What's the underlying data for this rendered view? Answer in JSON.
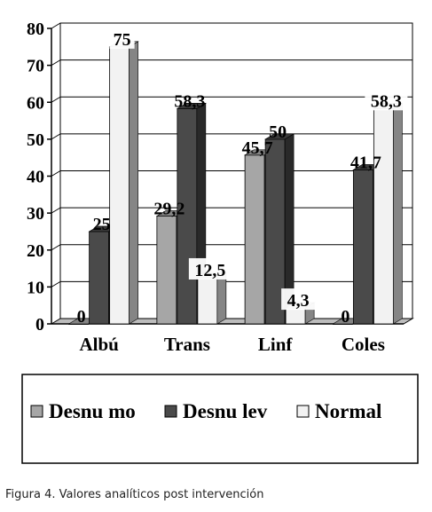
{
  "chart_data": {
    "type": "bar",
    "categories": [
      "Albú",
      "Trans",
      "Linf",
      "Coles"
    ],
    "series": [
      {
        "name": "Desnu mo",
        "values": [
          0,
          29.2,
          45.7,
          0
        ],
        "labels": [
          "0",
          "29,2",
          "45,7",
          "0"
        ],
        "color": "#a6a6a6"
      },
      {
        "name": "Desnu lev",
        "values": [
          25,
          58.3,
          50,
          41.7
        ],
        "labels": [
          "25",
          "58,3",
          "50",
          "41,7"
        ],
        "color": "#4a4a4a"
      },
      {
        "name": "Normal",
        "values": [
          75,
          12.5,
          4.3,
          58.3
        ],
        "labels": [
          "75",
          "12,5",
          "4,3",
          "58,3"
        ],
        "color": "#f2f2f2"
      }
    ],
    "ylim": [
      0,
      80
    ],
    "yticks": [
      0,
      10,
      20,
      30,
      40,
      50,
      60,
      70,
      80
    ],
    "grid": true,
    "legend_position": "bottom"
  },
  "caption": "Figura 4. Valores analíticos post intervención"
}
